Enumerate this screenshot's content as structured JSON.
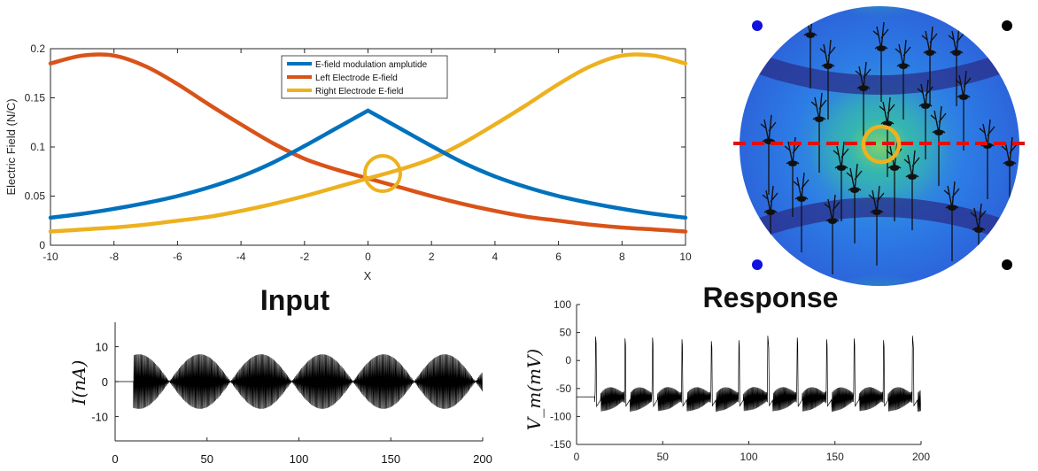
{
  "chart_data": [
    {
      "type": "line",
      "title": "",
      "xlabel": "X",
      "ylabel": "Electric Field (N/C)",
      "xlim": [
        -10,
        10
      ],
      "ylim": [
        0,
        0.2
      ],
      "xticks": [
        "-10",
        "-8",
        "-6",
        "-4",
        "-2",
        "0",
        "2",
        "4",
        "6",
        "8",
        "10"
      ],
      "yticks": [
        "0",
        "0.05",
        "0.1",
        "0.15",
        "0.2"
      ],
      "legend_position": "top-center",
      "x": [
        -10,
        -9,
        -8,
        -7,
        -6,
        -5,
        -4,
        -3,
        -2,
        -1,
        0,
        1,
        2,
        3,
        4,
        5,
        6,
        7,
        8,
        9,
        10
      ],
      "series": [
        {
          "name": "E-field modulation amplutide",
          "color": "#0072BD",
          "values": [
            0.028,
            0.032,
            0.037,
            0.043,
            0.05,
            0.059,
            0.07,
            0.084,
            0.101,
            0.119,
            0.137,
            0.119,
            0.101,
            0.084,
            0.07,
            0.059,
            0.05,
            0.043,
            0.037,
            0.032,
            0.028
          ]
        },
        {
          "name": "Left Electrode E-field",
          "color": "#D95319",
          "values": [
            0.185,
            0.193,
            0.193,
            0.182,
            0.164,
            0.143,
            0.123,
            0.104,
            0.088,
            0.077,
            0.068,
            0.059,
            0.05,
            0.042,
            0.035,
            0.029,
            0.025,
            0.021,
            0.018,
            0.016,
            0.014
          ]
        },
        {
          "name": "Right Electrode E-field",
          "color": "#EDB120",
          "values": [
            0.014,
            0.016,
            0.018,
            0.021,
            0.025,
            0.029,
            0.035,
            0.042,
            0.05,
            0.059,
            0.068,
            0.077,
            0.088,
            0.104,
            0.123,
            0.143,
            0.164,
            0.182,
            0.193,
            0.193,
            0.185
          ]
        }
      ]
    },
    {
      "type": "line",
      "title": "Input",
      "xlabel": "",
      "ylabel": "I(nA)",
      "xlim": [
        0,
        200
      ],
      "ylim": [
        -17,
        17
      ],
      "xticks": [
        "0",
        "50",
        "100",
        "150",
        "200"
      ],
      "yticks": [
        "10",
        "0",
        "-10"
      ],
      "signal": {
        "onset": 10,
        "envelope_amplitude": 10,
        "envelope_period": 33.3,
        "color": "#000000"
      }
    },
    {
      "type": "line",
      "title": "Response",
      "xlabel": "",
      "ylabel": "V_m(mV)",
      "xlim": [
        0,
        200
      ],
      "ylim": [
        -150,
        100
      ],
      "xticks": [
        "0",
        "50",
        "100",
        "150",
        "200"
      ],
      "yticks": [
        "100",
        "50",
        "0",
        "-50",
        "-100",
        "-150"
      ],
      "signal": {
        "baseline": -65,
        "spike_times": [
          11,
          28,
          44,
          61,
          78,
          94,
          111,
          128,
          145,
          161,
          178,
          195
        ],
        "spike_peak": 45,
        "color": "#000000"
      }
    }
  ],
  "figure": {
    "labels": {
      "input": "Input",
      "response": "Response"
    },
    "disk": {
      "electrodes": {
        "top_left": "#1010E0",
        "bottom_left": "#1010E0",
        "top_right": "#000000",
        "bottom_right": "#000000"
      },
      "dashed_line_color": "#E01010",
      "marker_ring_color": "#EDB120"
    }
  }
}
